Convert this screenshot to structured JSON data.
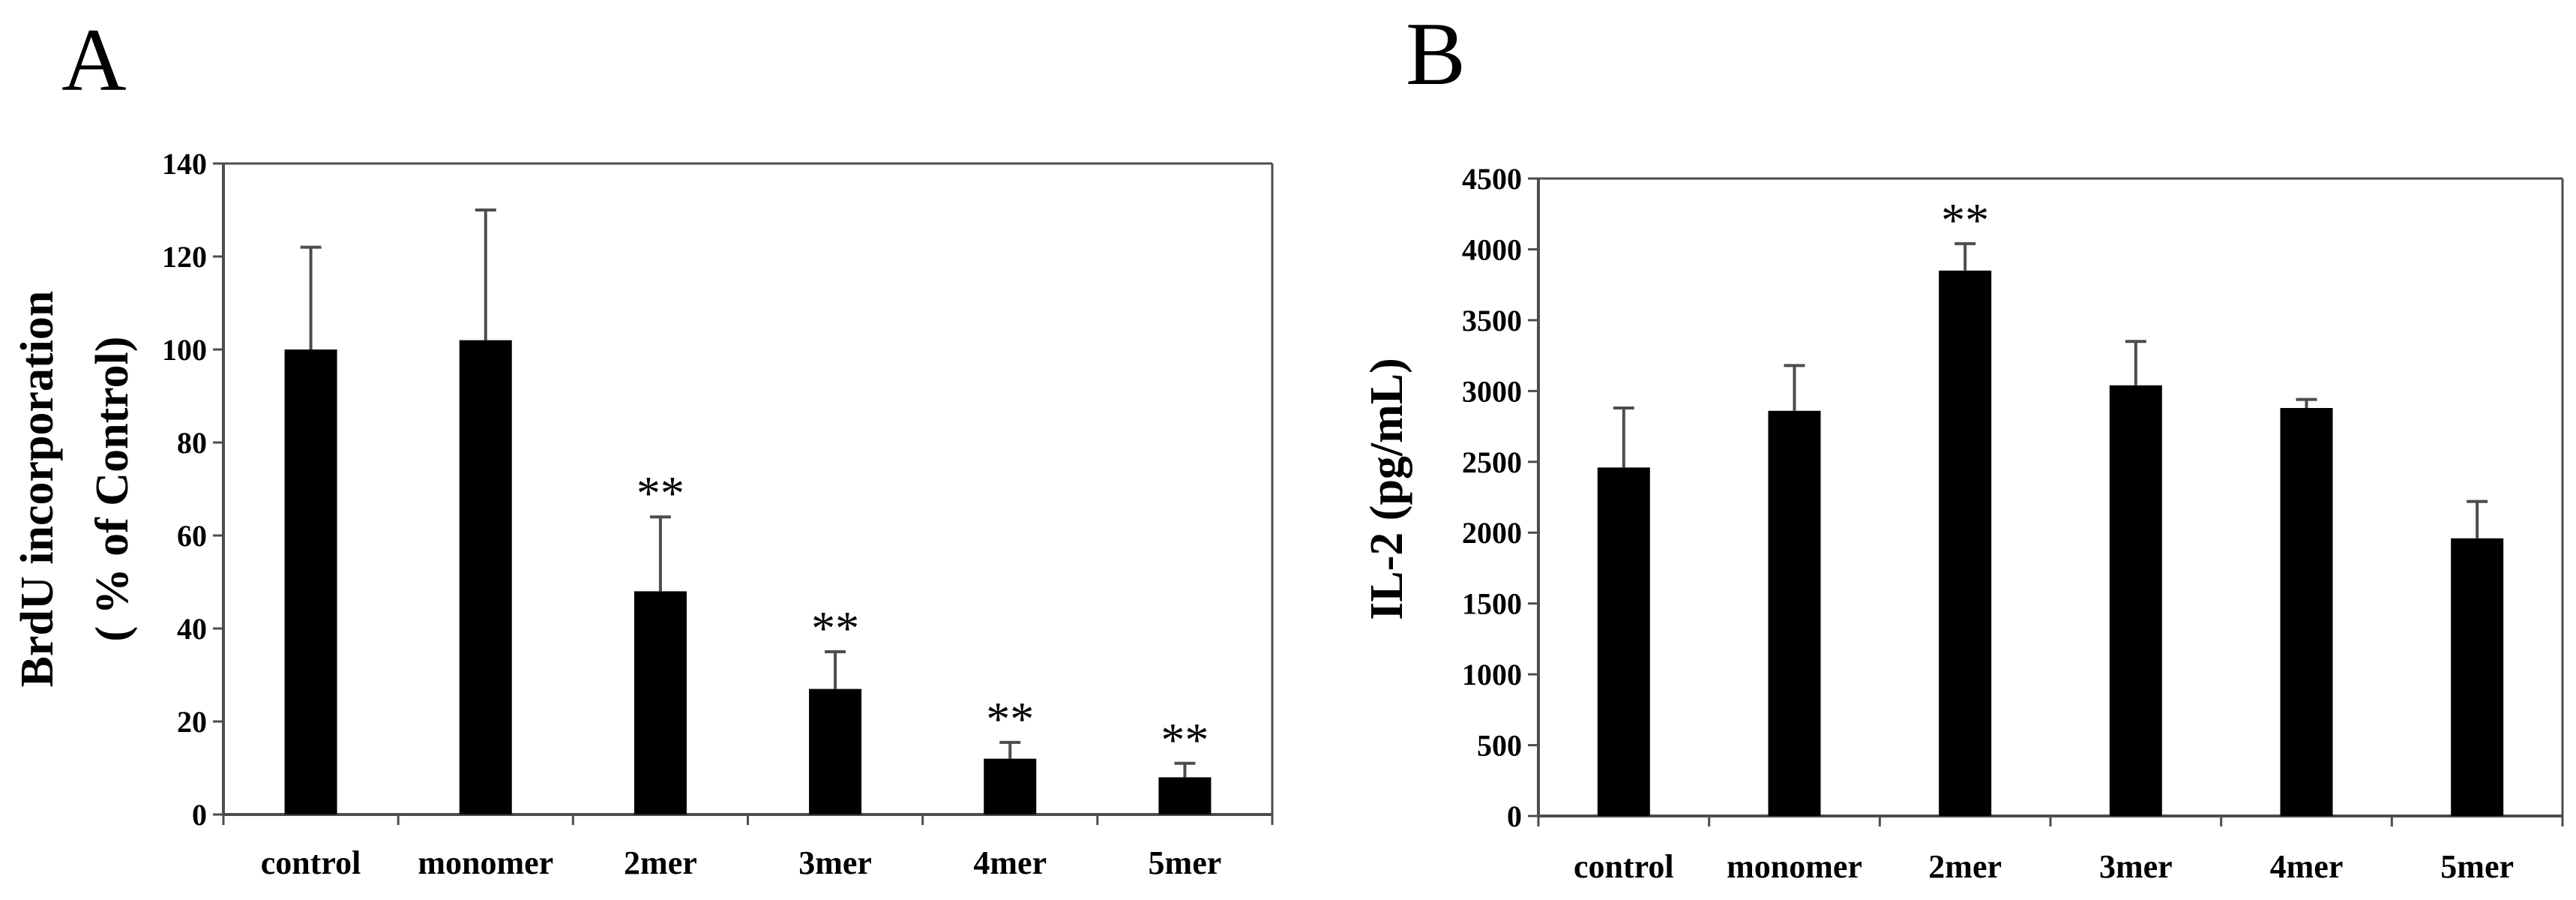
{
  "chart_data": [
    {
      "type": "bar",
      "panel_label": "A",
      "categories": [
        "control",
        "monomer",
        "2mer",
        "3mer",
        "4mer",
        "5mer"
      ],
      "values": [
        100,
        102,
        48,
        27,
        12,
        8
      ],
      "errors": [
        22,
        28,
        16,
        8,
        3.5,
        3
      ],
      "annotations": [
        "",
        "",
        "**",
        "**",
        "**",
        "**"
      ],
      "ylabel_line1": "BrdU incorporation",
      "ylabel_line2": "( % of Control)",
      "ylim": [
        0,
        140
      ],
      "yticks": [
        0,
        20,
        40,
        60,
        80,
        100,
        120,
        140
      ],
      "grid": false
    },
    {
      "type": "bar",
      "panel_label": "B",
      "categories": [
        "control",
        "monomer",
        "2mer",
        "3mer",
        "4mer",
        "5mer"
      ],
      "values": [
        2460,
        2860,
        3850,
        3040,
        2880,
        1960
      ],
      "errors": [
        420,
        320,
        190,
        310,
        60,
        260
      ],
      "annotations": [
        "",
        "",
        "**",
        "",
        "",
        ""
      ],
      "ylabel_line1": "IL-2 (pg/mL)",
      "ylim": [
        0,
        4500
      ],
      "yticks": [
        0,
        500,
        1000,
        1500,
        2000,
        2500,
        3000,
        3500,
        4000,
        4500
      ],
      "grid": false
    }
  ]
}
